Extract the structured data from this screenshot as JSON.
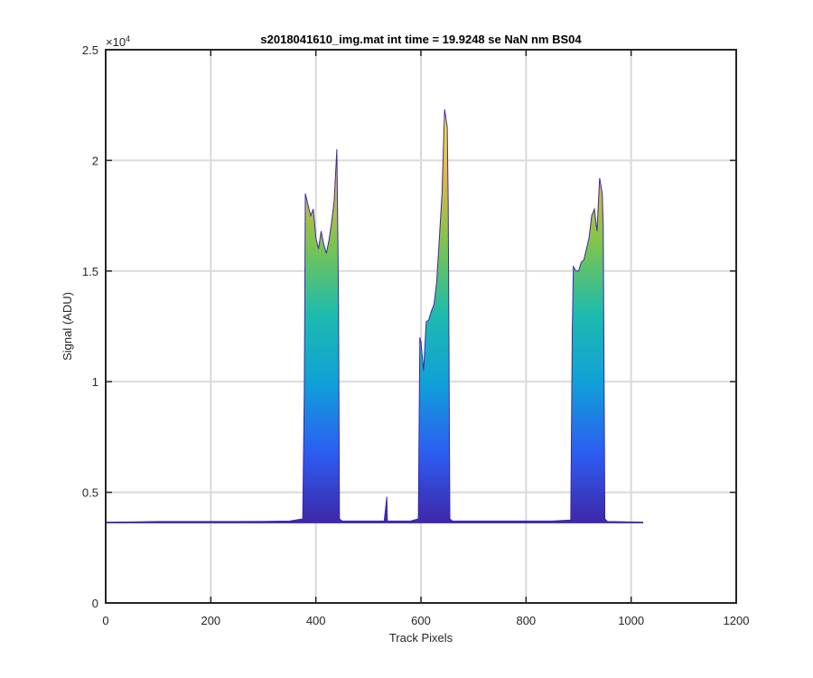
{
  "chart_data": {
    "type": "area",
    "title": "s2018041610_img.mat int time = 19.9248 se  NaN nm BS04",
    "xlabel": "Track Pixels",
    "ylabel": "Signal (ADU)",
    "xlim": [
      0,
      1200
    ],
    "ylim": [
      0,
      25000
    ],
    "x_ticks": [
      0,
      200,
      400,
      600,
      800,
      1000,
      1200
    ],
    "x_tick_labels": [
      "0",
      "200",
      "400",
      "600",
      "800",
      "1000",
      "1200"
    ],
    "y_ticks": [
      0,
      5000,
      10000,
      15000,
      20000,
      25000
    ],
    "y_tick_labels": [
      "0",
      "0.5",
      "1",
      "1.5",
      "2",
      "2.5"
    ],
    "y_exponent_label": "×10",
    "y_exponent_power": "4",
    "grid": true,
    "colormap": "parula",
    "colormap_colors": [
      "#3e26a8",
      "#2c5df2",
      "#10a0d8",
      "#1dbbad",
      "#7cc44e",
      "#e2b93a",
      "#f9fb15"
    ],
    "series": [
      {
        "x": [
          0,
          50,
          100,
          150,
          200,
          250,
          300,
          350,
          375,
          378,
          380,
          385,
          390,
          395,
          400,
          405,
          410,
          415,
          420,
          425,
          430,
          435,
          440,
          443,
          445,
          450,
          500,
          530,
          535,
          536,
          537,
          540,
          580,
          595,
          598,
          600,
          605,
          610,
          615,
          620,
          625,
          630,
          635,
          640,
          645,
          650,
          652,
          655,
          660,
          700,
          750,
          800,
          850,
          885,
          888,
          890,
          895,
          900,
          905,
          910,
          915,
          920,
          925,
          930,
          935,
          940,
          945,
          947,
          950,
          955,
          1000,
          1023
        ],
        "y": [
          3650,
          3660,
          3680,
          3680,
          3680,
          3680,
          3690,
          3700,
          3800,
          9700,
          18500,
          18000,
          17500,
          17800,
          16500,
          16000,
          16800,
          16200,
          15800,
          16400,
          17200,
          18200,
          20500,
          14000,
          3800,
          3700,
          3700,
          3700,
          4800,
          3700,
          3700,
          3700,
          3700,
          3800,
          12000,
          11800,
          10500,
          12700,
          12800,
          13200,
          13500,
          14500,
          16500,
          18500,
          22300,
          21500,
          18000,
          3800,
          3700,
          3700,
          3700,
          3700,
          3700,
          3750,
          12200,
          15200,
          15000,
          15000,
          15400,
          15500,
          16000,
          16500,
          17500,
          17800,
          16800,
          19200,
          18500,
          17000,
          3800,
          3680,
          3660,
          3650
        ]
      }
    ]
  }
}
